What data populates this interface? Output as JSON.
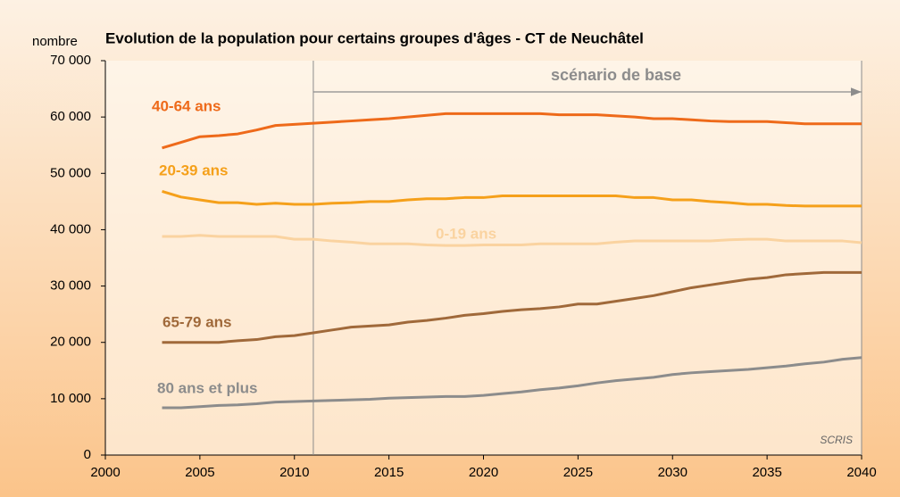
{
  "chart_data": {
    "type": "line",
    "title": "Evolution de la population pour certains groupes d'âges - CT de Neuchâtel",
    "y_label": "nombre",
    "source": "SCRIS",
    "annotation": {
      "text": "scénario de base",
      "x_start": 2011,
      "x_end": 2040
    },
    "x": [
      2003,
      2004,
      2005,
      2006,
      2007,
      2008,
      2009,
      2010,
      2011,
      2012,
      2013,
      2014,
      2015,
      2016,
      2017,
      2018,
      2019,
      2020,
      2021,
      2022,
      2023,
      2024,
      2025,
      2026,
      2027,
      2028,
      2029,
      2030,
      2031,
      2032,
      2033,
      2034,
      2035,
      2036,
      2037,
      2038,
      2039,
      2040
    ],
    "series": [
      {
        "name": "40-64 ans",
        "color": "#ee6a1a",
        "values": [
          54500,
          55500,
          56500,
          56700,
          57000,
          57700,
          58500,
          58700,
          58900,
          59100,
          59300,
          59500,
          59700,
          60000,
          60300,
          60600,
          60600,
          60600,
          60600,
          60600,
          60600,
          60400,
          60400,
          60400,
          60200,
          60000,
          59700,
          59700,
          59500,
          59300,
          59200,
          59200,
          59200,
          59000,
          58800,
          58800,
          58800,
          58800
        ]
      },
      {
        "name": "20-39 ans",
        "color": "#f5a01a",
        "values": [
          46800,
          45800,
          45300,
          44800,
          44800,
          44500,
          44700,
          44500,
          44500,
          44700,
          44800,
          45000,
          45000,
          45300,
          45500,
          45500,
          45700,
          45700,
          46000,
          46000,
          46000,
          46000,
          46000,
          46000,
          46000,
          45700,
          45700,
          45300,
          45300,
          45000,
          44800,
          44500,
          44500,
          44300,
          44200,
          44200,
          44200,
          44200
        ]
      },
      {
        "name": "0-19 ans",
        "color": "#fad3a0",
        "values": [
          38800,
          38800,
          39000,
          38800,
          38800,
          38800,
          38800,
          38300,
          38300,
          38000,
          37800,
          37500,
          37500,
          37500,
          37300,
          37200,
          37200,
          37300,
          37300,
          37300,
          37500,
          37500,
          37500,
          37500,
          37800,
          38000,
          38000,
          38000,
          38000,
          38000,
          38200,
          38300,
          38300,
          38000,
          38000,
          38000,
          38000,
          37700
        ]
      },
      {
        "name": "65-79 ans",
        "color": "#a0693a",
        "values": [
          20000,
          20000,
          20000,
          20000,
          20300,
          20500,
          21000,
          21200,
          21700,
          22200,
          22700,
          22900,
          23100,
          23600,
          23900,
          24300,
          24800,
          25100,
          25500,
          25800,
          26000,
          26300,
          26800,
          26800,
          27300,
          27800,
          28300,
          29000,
          29700,
          30200,
          30700,
          31200,
          31500,
          32000,
          32200,
          32400,
          32400,
          32400
        ]
      },
      {
        "name": "80 ans et plus",
        "color": "#8c8c8c",
        "values": [
          8400,
          8400,
          8600,
          8800,
          8900,
          9100,
          9400,
          9500,
          9600,
          9700,
          9800,
          9900,
          10100,
          10200,
          10300,
          10400,
          10400,
          10600,
          10900,
          11200,
          11600,
          11900,
          12300,
          12800,
          13200,
          13500,
          13800,
          14300,
          14600,
          14800,
          15000,
          15200,
          15500,
          15800,
          16200,
          16500,
          17000,
          17300
        ]
      }
    ],
    "xlim": [
      2000,
      2040
    ],
    "xticks": [
      2000,
      2005,
      2010,
      2015,
      2020,
      2025,
      2030,
      2035,
      2040
    ],
    "ylim": [
      0,
      70000
    ],
    "yticks": [
      0,
      {
        "value": 10000,
        "label": "10 000"
      },
      {
        "value": 20000,
        "label": "20 000"
      },
      {
        "value": 30000,
        "label": "30 000"
      },
      {
        "value": 40000,
        "label": "40 000"
      },
      {
        "value": 50000,
        "label": "50 000"
      },
      {
        "value": 60000,
        "label": "60 000"
      },
      {
        "value": 70000,
        "label": "70 000"
      }
    ]
  }
}
